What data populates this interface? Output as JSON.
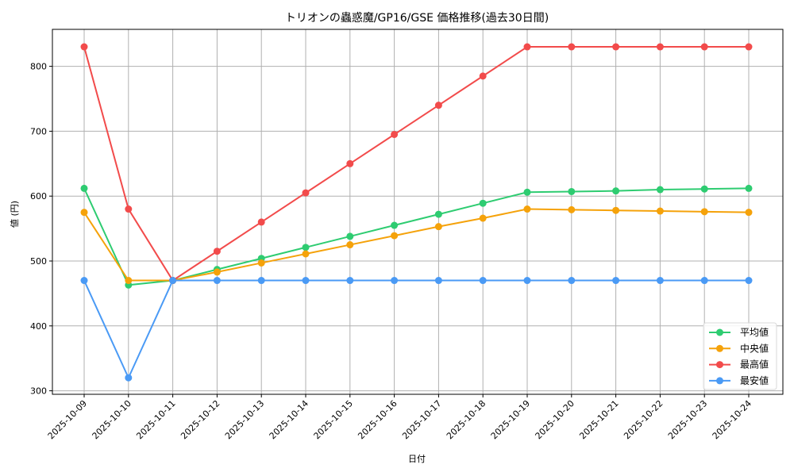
{
  "chart_data": {
    "type": "line",
    "title": "トリオンの蟲惑魔/GP16/GSE 価格推移(過去30日間)",
    "xlabel": "日付",
    "ylabel": "値 (円)",
    "ylim": [
      295,
      855
    ],
    "yticks": [
      300,
      400,
      500,
      600,
      700,
      800
    ],
    "grid": true,
    "legend_position": "lower right",
    "categories": [
      "2025-10-09",
      "2025-10-10",
      "2025-10-11",
      "2025-10-12",
      "2025-10-13",
      "2025-10-14",
      "2025-10-15",
      "2025-10-16",
      "2025-10-17",
      "2025-10-18",
      "2025-10-19",
      "2025-10-20",
      "2025-10-21",
      "2025-10-22",
      "2025-10-23",
      "2025-10-24"
    ],
    "series": [
      {
        "name": "平均値",
        "color": "#2ecc71",
        "values": [
          612,
          463,
          470,
          487,
          504,
          521,
          538,
          555,
          572,
          589,
          606,
          607,
          608,
          610,
          611,
          612
        ]
      },
      {
        "name": "中央値",
        "color": "#f5a20a",
        "values": [
          575,
          470,
          470,
          483,
          497,
          511,
          525,
          539,
          553,
          566,
          580,
          579,
          578,
          577,
          576,
          575
        ]
      },
      {
        "name": "最高値",
        "color": "#f24b4b",
        "values": [
          830,
          580,
          470,
          515,
          560,
          605,
          650,
          695,
          740,
          785,
          830,
          830,
          830,
          830,
          830,
          830
        ]
      },
      {
        "name": "最安値",
        "color": "#4a9af5",
        "values": [
          470,
          320,
          470,
          470,
          470,
          470,
          470,
          470,
          470,
          470,
          470,
          470,
          470,
          470,
          470,
          470
        ]
      }
    ]
  },
  "colors": {
    "grid": "#b0b0b0",
    "frame": "#000000",
    "background": "#ffffff"
  }
}
